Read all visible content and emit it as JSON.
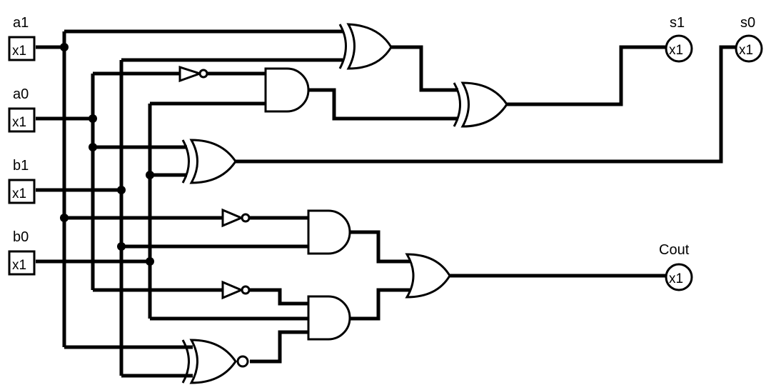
{
  "inputs": [
    {
      "label": "a1",
      "value": "x1"
    },
    {
      "label": "a0",
      "value": "x1"
    },
    {
      "label": "b1",
      "value": "x1"
    },
    {
      "label": "b0",
      "value": "x1"
    }
  ],
  "outputs": [
    {
      "label": "s1",
      "value": "x1"
    },
    {
      "label": "s0",
      "value": "x1"
    },
    {
      "label": "Cout",
      "value": "x1"
    }
  ],
  "gates": [
    {
      "type": "XOR"
    },
    {
      "type": "AND"
    },
    {
      "type": "XOR"
    },
    {
      "type": "XOR"
    },
    {
      "type": "AND"
    },
    {
      "type": "AND"
    },
    {
      "type": "OR"
    },
    {
      "type": "XNOR"
    },
    {
      "type": "NOT"
    },
    {
      "type": "NOT"
    },
    {
      "type": "NOT"
    }
  ]
}
